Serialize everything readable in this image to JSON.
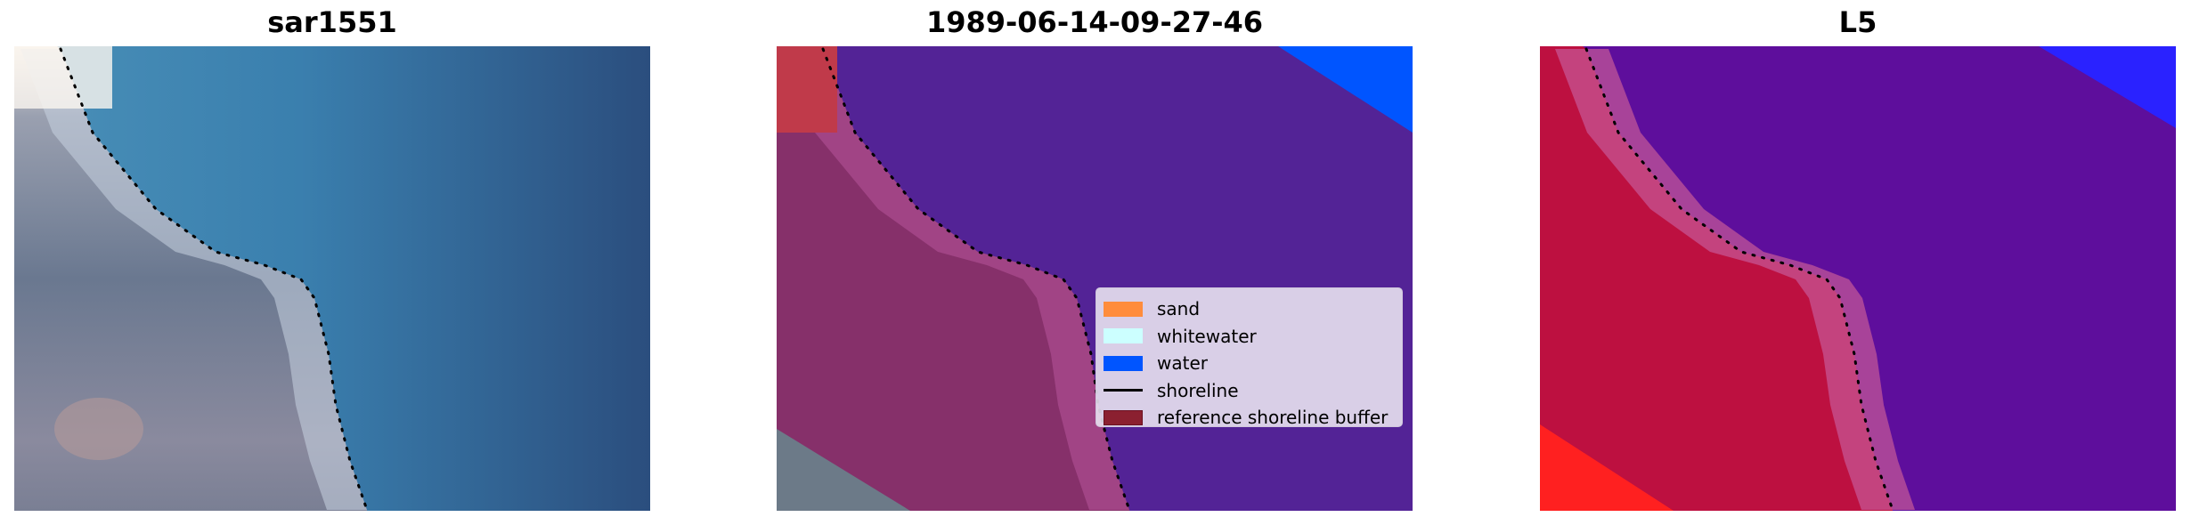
{
  "panels": [
    {
      "title": "sar1551",
      "description_type": "rgb"
    },
    {
      "title": "1989-06-14-09-27-46",
      "description_type": "classified"
    },
    {
      "title": "L5",
      "description_type": "mndwi"
    }
  ],
  "legend": {
    "items": [
      {
        "label": "sand",
        "color": "#ff8c3c",
        "kind": "patch"
      },
      {
        "label": "whitewater",
        "color": "#ccffff",
        "kind": "patch"
      },
      {
        "label": "water",
        "color": "#0055ff",
        "kind": "patch"
      },
      {
        "label": "shoreline",
        "color": "#000000",
        "kind": "line"
      },
      {
        "label": "reference shoreline buffer",
        "color": "#8b2030",
        "kind": "patch"
      }
    ]
  }
}
